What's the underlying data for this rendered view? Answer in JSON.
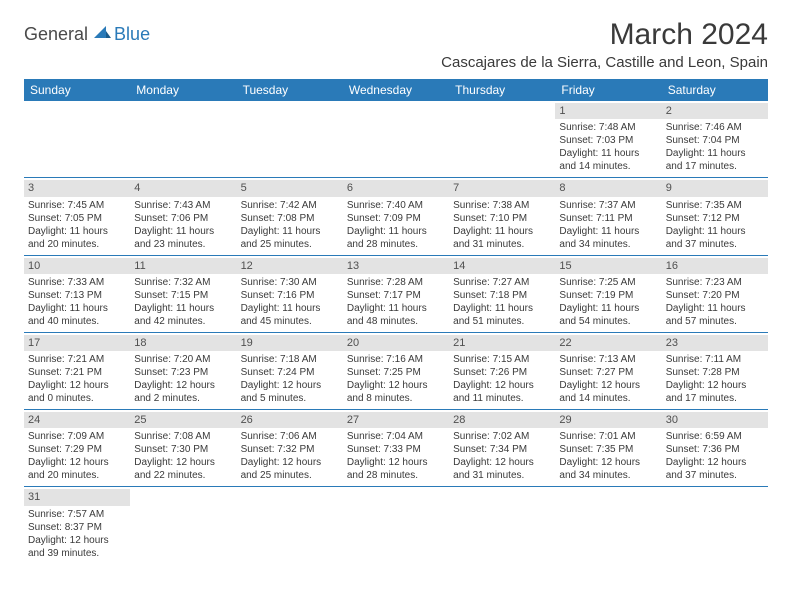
{
  "logo": {
    "part1": "General",
    "part2": "Blue"
  },
  "title": "March 2024",
  "location": "Cascajares de la Sierra, Castille and Leon, Spain",
  "colors": {
    "header_bg": "#2a7ab8",
    "header_text": "#ffffff",
    "date_bg": "#e3e3e3",
    "border": "#2a7ab8",
    "body_text": "#3a3a3a",
    "page_bg": "#ffffff"
  },
  "day_names": [
    "Sunday",
    "Monday",
    "Tuesday",
    "Wednesday",
    "Thursday",
    "Friday",
    "Saturday"
  ],
  "weeks": [
    [
      {
        "date": null
      },
      {
        "date": null
      },
      {
        "date": null
      },
      {
        "date": null
      },
      {
        "date": null
      },
      {
        "date": "1",
        "sunrise": "Sunrise: 7:48 AM",
        "sunset": "Sunset: 7:03 PM",
        "day1": "Daylight: 11 hours",
        "day2": "and 14 minutes."
      },
      {
        "date": "2",
        "sunrise": "Sunrise: 7:46 AM",
        "sunset": "Sunset: 7:04 PM",
        "day1": "Daylight: 11 hours",
        "day2": "and 17 minutes."
      }
    ],
    [
      {
        "date": "3",
        "sunrise": "Sunrise: 7:45 AM",
        "sunset": "Sunset: 7:05 PM",
        "day1": "Daylight: 11 hours",
        "day2": "and 20 minutes."
      },
      {
        "date": "4",
        "sunrise": "Sunrise: 7:43 AM",
        "sunset": "Sunset: 7:06 PM",
        "day1": "Daylight: 11 hours",
        "day2": "and 23 minutes."
      },
      {
        "date": "5",
        "sunrise": "Sunrise: 7:42 AM",
        "sunset": "Sunset: 7:08 PM",
        "day1": "Daylight: 11 hours",
        "day2": "and 25 minutes."
      },
      {
        "date": "6",
        "sunrise": "Sunrise: 7:40 AM",
        "sunset": "Sunset: 7:09 PM",
        "day1": "Daylight: 11 hours",
        "day2": "and 28 minutes."
      },
      {
        "date": "7",
        "sunrise": "Sunrise: 7:38 AM",
        "sunset": "Sunset: 7:10 PM",
        "day1": "Daylight: 11 hours",
        "day2": "and 31 minutes."
      },
      {
        "date": "8",
        "sunrise": "Sunrise: 7:37 AM",
        "sunset": "Sunset: 7:11 PM",
        "day1": "Daylight: 11 hours",
        "day2": "and 34 minutes."
      },
      {
        "date": "9",
        "sunrise": "Sunrise: 7:35 AM",
        "sunset": "Sunset: 7:12 PM",
        "day1": "Daylight: 11 hours",
        "day2": "and 37 minutes."
      }
    ],
    [
      {
        "date": "10",
        "sunrise": "Sunrise: 7:33 AM",
        "sunset": "Sunset: 7:13 PM",
        "day1": "Daylight: 11 hours",
        "day2": "and 40 minutes."
      },
      {
        "date": "11",
        "sunrise": "Sunrise: 7:32 AM",
        "sunset": "Sunset: 7:15 PM",
        "day1": "Daylight: 11 hours",
        "day2": "and 42 minutes."
      },
      {
        "date": "12",
        "sunrise": "Sunrise: 7:30 AM",
        "sunset": "Sunset: 7:16 PM",
        "day1": "Daylight: 11 hours",
        "day2": "and 45 minutes."
      },
      {
        "date": "13",
        "sunrise": "Sunrise: 7:28 AM",
        "sunset": "Sunset: 7:17 PM",
        "day1": "Daylight: 11 hours",
        "day2": "and 48 minutes."
      },
      {
        "date": "14",
        "sunrise": "Sunrise: 7:27 AM",
        "sunset": "Sunset: 7:18 PM",
        "day1": "Daylight: 11 hours",
        "day2": "and 51 minutes."
      },
      {
        "date": "15",
        "sunrise": "Sunrise: 7:25 AM",
        "sunset": "Sunset: 7:19 PM",
        "day1": "Daylight: 11 hours",
        "day2": "and 54 minutes."
      },
      {
        "date": "16",
        "sunrise": "Sunrise: 7:23 AM",
        "sunset": "Sunset: 7:20 PM",
        "day1": "Daylight: 11 hours",
        "day2": "and 57 minutes."
      }
    ],
    [
      {
        "date": "17",
        "sunrise": "Sunrise: 7:21 AM",
        "sunset": "Sunset: 7:21 PM",
        "day1": "Daylight: 12 hours",
        "day2": "and 0 minutes."
      },
      {
        "date": "18",
        "sunrise": "Sunrise: 7:20 AM",
        "sunset": "Sunset: 7:23 PM",
        "day1": "Daylight: 12 hours",
        "day2": "and 2 minutes."
      },
      {
        "date": "19",
        "sunrise": "Sunrise: 7:18 AM",
        "sunset": "Sunset: 7:24 PM",
        "day1": "Daylight: 12 hours",
        "day2": "and 5 minutes."
      },
      {
        "date": "20",
        "sunrise": "Sunrise: 7:16 AM",
        "sunset": "Sunset: 7:25 PM",
        "day1": "Daylight: 12 hours",
        "day2": "and 8 minutes."
      },
      {
        "date": "21",
        "sunrise": "Sunrise: 7:15 AM",
        "sunset": "Sunset: 7:26 PM",
        "day1": "Daylight: 12 hours",
        "day2": "and 11 minutes."
      },
      {
        "date": "22",
        "sunrise": "Sunrise: 7:13 AM",
        "sunset": "Sunset: 7:27 PM",
        "day1": "Daylight: 12 hours",
        "day2": "and 14 minutes."
      },
      {
        "date": "23",
        "sunrise": "Sunrise: 7:11 AM",
        "sunset": "Sunset: 7:28 PM",
        "day1": "Daylight: 12 hours",
        "day2": "and 17 minutes."
      }
    ],
    [
      {
        "date": "24",
        "sunrise": "Sunrise: 7:09 AM",
        "sunset": "Sunset: 7:29 PM",
        "day1": "Daylight: 12 hours",
        "day2": "and 20 minutes."
      },
      {
        "date": "25",
        "sunrise": "Sunrise: 7:08 AM",
        "sunset": "Sunset: 7:30 PM",
        "day1": "Daylight: 12 hours",
        "day2": "and 22 minutes."
      },
      {
        "date": "26",
        "sunrise": "Sunrise: 7:06 AM",
        "sunset": "Sunset: 7:32 PM",
        "day1": "Daylight: 12 hours",
        "day2": "and 25 minutes."
      },
      {
        "date": "27",
        "sunrise": "Sunrise: 7:04 AM",
        "sunset": "Sunset: 7:33 PM",
        "day1": "Daylight: 12 hours",
        "day2": "and 28 minutes."
      },
      {
        "date": "28",
        "sunrise": "Sunrise: 7:02 AM",
        "sunset": "Sunset: 7:34 PM",
        "day1": "Daylight: 12 hours",
        "day2": "and 31 minutes."
      },
      {
        "date": "29",
        "sunrise": "Sunrise: 7:01 AM",
        "sunset": "Sunset: 7:35 PM",
        "day1": "Daylight: 12 hours",
        "day2": "and 34 minutes."
      },
      {
        "date": "30",
        "sunrise": "Sunrise: 6:59 AM",
        "sunset": "Sunset: 7:36 PM",
        "day1": "Daylight: 12 hours",
        "day2": "and 37 minutes."
      }
    ],
    [
      {
        "date": "31",
        "sunrise": "Sunrise: 7:57 AM",
        "sunset": "Sunset: 8:37 PM",
        "day1": "Daylight: 12 hours",
        "day2": "and 39 minutes."
      },
      {
        "date": null
      },
      {
        "date": null
      },
      {
        "date": null
      },
      {
        "date": null
      },
      {
        "date": null
      },
      {
        "date": null
      }
    ]
  ]
}
